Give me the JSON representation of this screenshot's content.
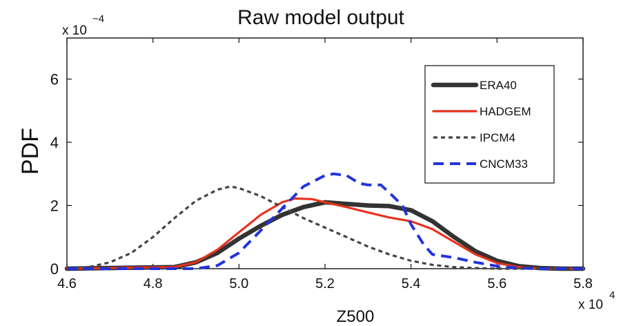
{
  "chart_data": {
    "type": "line",
    "title": "Raw model output",
    "xlabel": "Z500",
    "ylabel": "PDF",
    "x_exponent_label": "x 10",
    "x_exponent": "4",
    "y_exponent_label": "x 10",
    "y_exponent": "−4",
    "xlim": [
      4.6,
      5.8
    ],
    "ylim": [
      0,
      7.3
    ],
    "xticks": [
      4.6,
      4.8,
      5.0,
      5.2,
      5.4,
      5.6,
      5.8
    ],
    "xtick_labels": [
      "4.6",
      "4.8",
      "5.0",
      "5.2",
      "5.4",
      "5.6",
      "5.8"
    ],
    "yticks": [
      0,
      2,
      4,
      6
    ],
    "ytick_labels": [
      "0",
      "2",
      "4",
      "6"
    ],
    "grid": false,
    "legend_position": "top-right",
    "series": [
      {
        "name": "ERA40",
        "color": "#333333",
        "style": "solid-thick",
        "x": [
          4.6,
          4.85,
          4.9,
          4.95,
          5.0,
          5.05,
          5.1,
          5.15,
          5.2,
          5.25,
          5.3,
          5.35,
          5.4,
          5.45,
          5.5,
          5.55,
          5.6,
          5.65,
          5.7,
          5.75,
          5.8
        ],
        "y": [
          0,
          0.05,
          0.2,
          0.5,
          0.95,
          1.35,
          1.7,
          1.95,
          2.1,
          2.05,
          2.0,
          1.98,
          1.85,
          1.5,
          1.0,
          0.55,
          0.25,
          0.08,
          0.02,
          0,
          0
        ]
      },
      {
        "name": "HADGEM",
        "color": "#e8321e",
        "style": "solid",
        "x": [
          4.6,
          4.85,
          4.9,
          4.95,
          5.0,
          5.05,
          5.1,
          5.13,
          5.17,
          5.2,
          5.25,
          5.3,
          5.35,
          5.4,
          5.45,
          5.5,
          5.55,
          5.6,
          5.65,
          5.7,
          5.8
        ],
        "y": [
          0,
          0.05,
          0.2,
          0.6,
          1.15,
          1.7,
          2.1,
          2.22,
          2.2,
          2.1,
          1.95,
          1.78,
          1.62,
          1.5,
          1.25,
          0.85,
          0.45,
          0.18,
          0.05,
          0,
          0
        ]
      },
      {
        "name": "IPCM4",
        "color": "#444444",
        "style": "dotted",
        "x": [
          4.6,
          4.65,
          4.7,
          4.75,
          4.8,
          4.85,
          4.9,
          4.95,
          4.98,
          5.0,
          5.05,
          5.1,
          5.15,
          5.2,
          5.25,
          5.3,
          5.35,
          5.4,
          5.45,
          5.5,
          5.55,
          5.6,
          5.7,
          5.8
        ],
        "y": [
          0,
          0.05,
          0.2,
          0.5,
          1.0,
          1.6,
          2.15,
          2.5,
          2.6,
          2.55,
          2.3,
          1.95,
          1.6,
          1.3,
          1.0,
          0.7,
          0.45,
          0.25,
          0.12,
          0.05,
          0.02,
          0,
          0,
          0
        ]
      },
      {
        "name": "CNCM33",
        "color": "#2233dd",
        "style": "dashed",
        "x": [
          4.6,
          4.9,
          4.95,
          5.0,
          5.05,
          5.1,
          5.15,
          5.2,
          5.22,
          5.25,
          5.28,
          5.3,
          5.33,
          5.35,
          5.38,
          5.4,
          5.43,
          5.45,
          5.5,
          5.55,
          5.6,
          5.65,
          5.7,
          5.8
        ],
        "y": [
          0,
          0,
          0.1,
          0.5,
          1.2,
          1.9,
          2.6,
          2.95,
          3.0,
          2.95,
          2.7,
          2.65,
          2.65,
          2.4,
          2.0,
          1.4,
          0.75,
          0.45,
          0.35,
          0.2,
          0.08,
          0.02,
          0,
          0
        ]
      }
    ]
  }
}
